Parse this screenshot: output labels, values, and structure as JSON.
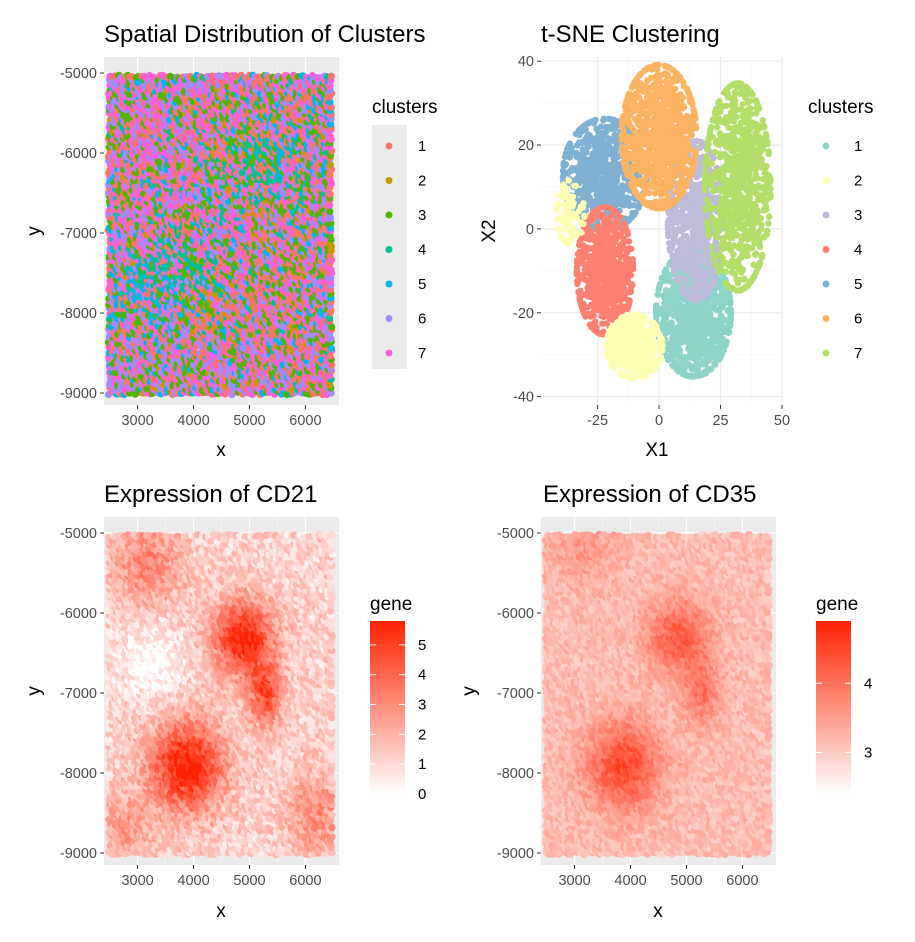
{
  "chart_data": [
    {
      "id": "spatial",
      "type": "scatter",
      "title": "Spatial Distribution of Clusters",
      "xlabel": "x",
      "ylabel": "y",
      "xlim": [
        2400,
        6600
      ],
      "ylim": [
        -9150,
        -4800
      ],
      "xticks": [
        3000,
        4000,
        5000,
        6000
      ],
      "xtick_labels": [
        "3000",
        "4000",
        "5000",
        "6000"
      ],
      "yticks": [
        -5000,
        -6000,
        -7000,
        -8000,
        -9000
      ],
      "ytick_labels": [
        "-5000",
        "-6000",
        "-7000",
        "-8000",
        "-9000"
      ],
      "grid": true,
      "legend": {
        "title": "clusters",
        "position": "right",
        "entries": [
          "1",
          "2",
          "3",
          "4",
          "5",
          "6",
          "7"
        ]
      },
      "series_colors": [
        "#F8766D",
        "#C49A00",
        "#53B400",
        "#00C094",
        "#00B6EB",
        "#A58AFF",
        "#FB61D7"
      ]
    },
    {
      "id": "tsne",
      "type": "scatter",
      "title": "t-SNE Clustering",
      "xlabel": "X1",
      "ylabel": "X2",
      "xlim": [
        -48,
        50
      ],
      "ylim": [
        -42,
        41
      ],
      "xticks": [
        -25,
        0,
        25,
        50
      ],
      "xtick_labels": [
        "-25",
        "0",
        "25",
        "50"
      ],
      "yticks": [
        40,
        20,
        0,
        -20,
        -40
      ],
      "ytick_labels": [
        "40",
        "20",
        "0",
        "-20",
        "-40"
      ],
      "grid": true,
      "legend": {
        "title": "clusters",
        "position": "right",
        "entries": [
          "1",
          "2",
          "3",
          "4",
          "5",
          "6",
          "7"
        ]
      },
      "series_colors": [
        "#8DD3C7",
        "#FFFFB3",
        "#BEBADA",
        "#FB8072",
        "#80B1D3",
        "#FDB462",
        "#B3DE69"
      ]
    },
    {
      "id": "cd21",
      "type": "heatmap",
      "title": "Expression of CD21",
      "xlabel": "x",
      "ylabel": "y",
      "xlim": [
        2400,
        6600
      ],
      "ylim": [
        -9150,
        -4800
      ],
      "xticks": [
        3000,
        4000,
        5000,
        6000
      ],
      "xtick_labels": [
        "3000",
        "4000",
        "5000",
        "6000"
      ],
      "yticks": [
        -5000,
        -6000,
        -7000,
        -8000,
        -9000
      ],
      "ytick_labels": [
        "-5000",
        "-6000",
        "-7000",
        "-8000",
        "-9000"
      ],
      "grid": true,
      "legend": {
        "title": "gene",
        "position": "right",
        "range": [
          0,
          5.8
        ],
        "breaks": [
          5,
          4,
          3,
          2,
          1,
          0
        ],
        "break_labels": [
          "5",
          "4",
          "3",
          "2",
          "1",
          "0"
        ],
        "low_color": "#FFFFFF",
        "high_color": "#FF2200"
      }
    },
    {
      "id": "cd35",
      "type": "heatmap",
      "title": "Expression of CD35",
      "xlabel": "x",
      "ylabel": "y",
      "xlim": [
        2400,
        6600
      ],
      "ylim": [
        -9150,
        -4800
      ],
      "xticks": [
        3000,
        4000,
        5000,
        6000
      ],
      "xtick_labels": [
        "3000",
        "4000",
        "5000",
        "6000"
      ],
      "yticks": [
        -5000,
        -6000,
        -7000,
        -8000,
        -9000
      ],
      "ytick_labels": [
        "-5000",
        "-6000",
        "-7000",
        "-8000",
        "-9000"
      ],
      "grid": true,
      "legend": {
        "title": "gene",
        "position": "right",
        "range": [
          2.4,
          4.9
        ],
        "breaks": [
          4,
          3
        ],
        "break_labels": [
          "4",
          "3"
        ],
        "low_color": "#FFFFFF",
        "high_color": "#FF2200"
      }
    }
  ]
}
